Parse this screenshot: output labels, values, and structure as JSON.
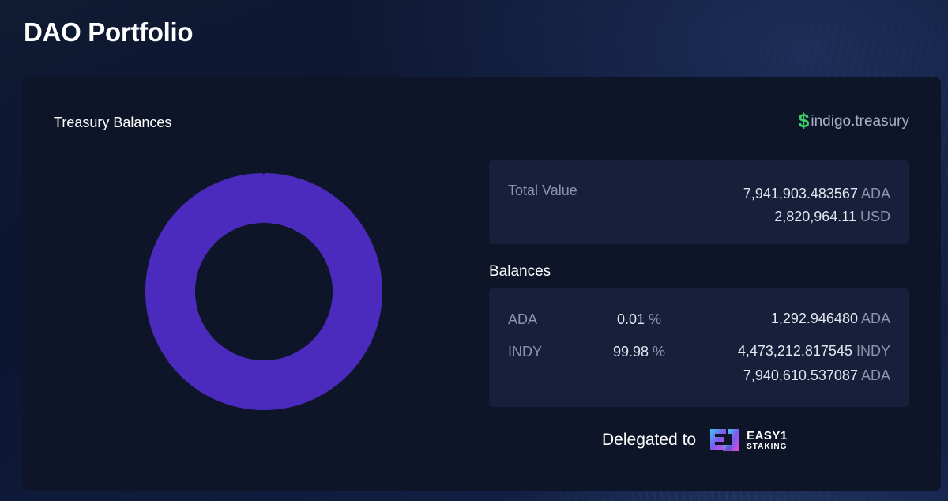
{
  "page": {
    "title": "DAO Portfolio"
  },
  "panel": {
    "title": "Treasury Balances",
    "treasury_link": {
      "icon": "dollar-icon",
      "icon_glyph": "$",
      "label": "indigo.treasury"
    }
  },
  "chart_data": {
    "type": "pie",
    "style": "donut",
    "categories": [
      "ADA",
      "INDY"
    ],
    "values": [
      0.01,
      99.98
    ],
    "colors": [
      "#4a2bbd",
      "#4a2bbd"
    ]
  },
  "total": {
    "label": "Total Value",
    "ada_value": "7,941,903.483567",
    "ada_unit": "ADA",
    "usd_value": "2,820,964.11",
    "usd_unit": "USD"
  },
  "balances": {
    "heading": "Balances",
    "rows": [
      {
        "token": "ADA",
        "percent": "0.01",
        "percent_unit": "%",
        "amount": "1,292.946480",
        "amount_unit": "ADA"
      },
      {
        "token": "INDY",
        "percent": "99.98",
        "percent_unit": "%",
        "amount": "4,473,212.817545",
        "amount_unit": "INDY",
        "ada_equiv": "7,940,610.537087",
        "ada_equiv_unit": "ADA"
      }
    ]
  },
  "delegation": {
    "text": "Delegated to",
    "pool_logo_icon": "easy1-staking-logo",
    "pool_name_line1": "EASY1",
    "pool_name_line2": "STAKING"
  },
  "colors": {
    "background": "#0c1530",
    "panel": "#0f1529",
    "card": "#171f3a",
    "accent_purple": "#4a2bbd",
    "dollar_green": "#3ccf6b",
    "muted_text": "#8d94ac"
  }
}
